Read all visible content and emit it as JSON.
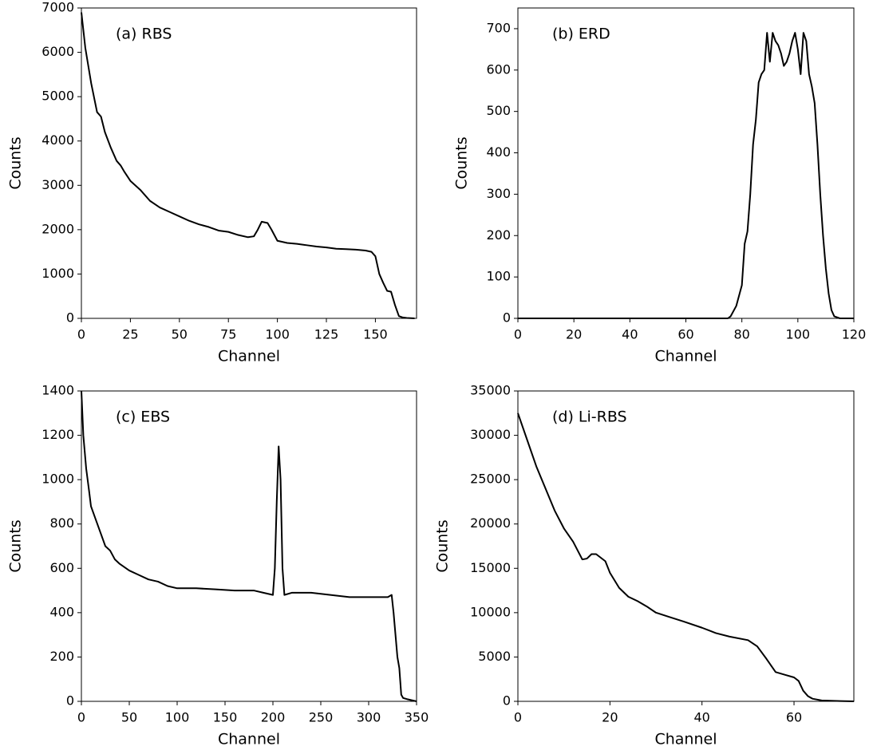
{
  "chart_data": [
    {
      "type": "line",
      "annotation": "(a) RBS",
      "xlabel": "Channel",
      "ylabel": "Counts",
      "color": "#000000",
      "xlim": [
        0,
        171
      ],
      "ylim": [
        0,
        7000
      ],
      "xticks": [
        0,
        25,
        50,
        75,
        100,
        125,
        150
      ],
      "yticks": [
        0,
        1000,
        2000,
        3000,
        4000,
        5000,
        6000,
        7000
      ],
      "x": [
        0,
        2,
        5,
        8,
        10,
        12,
        15,
        18,
        20,
        22,
        25,
        30,
        35,
        40,
        45,
        50,
        55,
        60,
        65,
        70,
        75,
        80,
        85,
        88,
        90,
        92,
        95,
        97,
        100,
        105,
        110,
        115,
        120,
        125,
        130,
        135,
        140,
        145,
        148,
        150,
        152,
        154,
        156,
        158,
        160,
        162,
        164,
        166,
        170
      ],
      "values": [
        6900,
        6100,
        5300,
        4650,
        4550,
        4200,
        3850,
        3550,
        3450,
        3300,
        3100,
        2900,
        2650,
        2500,
        2400,
        2300,
        2200,
        2120,
        2060,
        1980,
        1950,
        1880,
        1830,
        1850,
        2000,
        2180,
        2150,
        2000,
        1750,
        1700,
        1680,
        1650,
        1620,
        1600,
        1570,
        1560,
        1550,
        1530,
        1500,
        1400,
        1000,
        800,
        620,
        600,
        300,
        50,
        20,
        10,
        0
      ]
    },
    {
      "type": "line",
      "annotation": "(b) ERD",
      "xlabel": "Channel",
      "ylabel": "Counts",
      "color": "#000000",
      "xlim": [
        0,
        120
      ],
      "ylim": [
        0,
        750
      ],
      "xticks": [
        0,
        20,
        40,
        60,
        80,
        100,
        120
      ],
      "yticks": [
        0,
        100,
        200,
        300,
        400,
        500,
        600,
        700
      ],
      "x": [
        0,
        20,
        40,
        60,
        75,
        76,
        78,
        80,
        81,
        82,
        83,
        84,
        85,
        86,
        87,
        88,
        89,
        90,
        91,
        92,
        93,
        94,
        95,
        96,
        97,
        98,
        99,
        100,
        101,
        102,
        103,
        104,
        105,
        106,
        107,
        108,
        109,
        110,
        111,
        112,
        113,
        115,
        120
      ],
      "values": [
        0,
        0,
        0,
        0,
        0,
        5,
        30,
        80,
        180,
        210,
        300,
        420,
        480,
        570,
        590,
        600,
        690,
        620,
        690,
        670,
        660,
        640,
        610,
        620,
        640,
        670,
        690,
        650,
        590,
        690,
        670,
        590,
        560,
        520,
        420,
        300,
        200,
        120,
        60,
        20,
        5,
        0,
        0
      ]
    },
    {
      "type": "line",
      "annotation": "(c) EBS",
      "xlabel": "Channel",
      "ylabel": "Counts",
      "color": "#000000",
      "xlim": [
        0,
        350
      ],
      "ylim": [
        0,
        1400
      ],
      "xticks": [
        0,
        50,
        100,
        150,
        200,
        250,
        300,
        350
      ],
      "yticks": [
        0,
        200,
        400,
        600,
        800,
        1000,
        1200,
        1400
      ],
      "x": [
        0,
        2,
        5,
        8,
        10,
        15,
        20,
        25,
        30,
        35,
        40,
        50,
        60,
        70,
        80,
        90,
        100,
        120,
        140,
        160,
        180,
        190,
        200,
        202,
        204,
        206,
        208,
        210,
        212,
        220,
        240,
        260,
        280,
        300,
        320,
        324,
        326,
        328,
        330,
        332,
        334,
        336,
        340,
        350
      ],
      "values": [
        1400,
        1200,
        1050,
        950,
        880,
        820,
        760,
        700,
        680,
        640,
        620,
        590,
        570,
        550,
        540,
        520,
        510,
        510,
        505,
        500,
        500,
        490,
        480,
        600,
        900,
        1150,
        1000,
        600,
        480,
        490,
        490,
        480,
        470,
        470,
        470,
        480,
        400,
        300,
        200,
        150,
        30,
        15,
        10,
        0
      ]
    },
    {
      "type": "line",
      "annotation": "(d) Li-RBS",
      "xlabel": "Channel",
      "ylabel": "Counts",
      "color": "#000000",
      "xlim": [
        0,
        73
      ],
      "ylim": [
        0,
        35000
      ],
      "xticks": [
        0,
        20,
        40,
        60
      ],
      "yticks": [
        0,
        5000,
        10000,
        15000,
        20000,
        25000,
        30000,
        35000
      ],
      "x": [
        0,
        2,
        4,
        6,
        8,
        10,
        12,
        14,
        15,
        16,
        17,
        19,
        20,
        22,
        24,
        26,
        28,
        30,
        33,
        36,
        40,
        43,
        46,
        50,
        52,
        54,
        56,
        58,
        60,
        61,
        62,
        63,
        64,
        66,
        70,
        73
      ],
      "values": [
        32500,
        29500,
        26500,
        24000,
        21500,
        19500,
        18000,
        16000,
        16100,
        16600,
        16600,
        15800,
        14500,
        12800,
        11800,
        11300,
        10700,
        10000,
        9500,
        9000,
        8300,
        7700,
        7300,
        6900,
        6200,
        4800,
        3300,
        3000,
        2700,
        2300,
        1200,
        600,
        300,
        100,
        30,
        0
      ]
    }
  ]
}
